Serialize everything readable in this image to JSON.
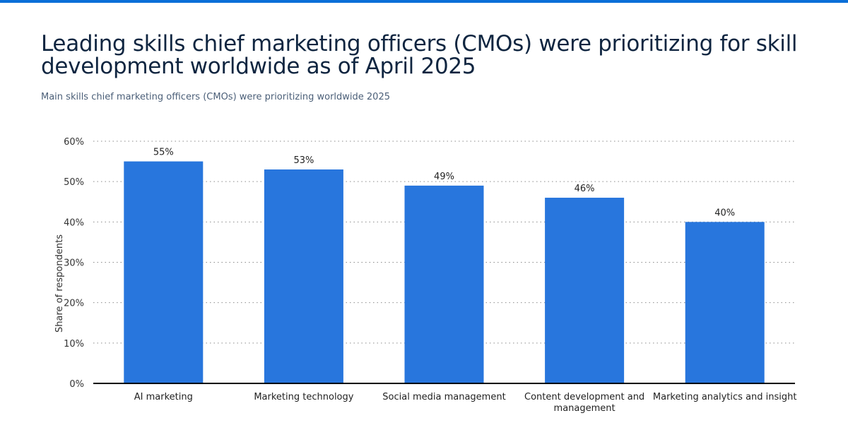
{
  "colors": {
    "accent": "#0b6fd8",
    "bar": "#2876dd",
    "title": "#0f2540"
  },
  "chart_data": {
    "type": "bar",
    "title": "Leading skills chief marketing officers (CMOs) were prioritizing for skill development worldwide as of April 2025",
    "subtitle": "Main skills chief marketing officers (CMOs) were prioritizing worldwide 2025",
    "xlabel": "",
    "ylabel": "Share of respondents",
    "ylim": [
      0,
      60
    ],
    "yticks": [
      0,
      10,
      20,
      30,
      40,
      50,
      60
    ],
    "ytick_labels": [
      "0%",
      "10%",
      "20%",
      "30%",
      "40%",
      "50%",
      "60%"
    ],
    "grid": true,
    "categories": [
      [
        "AI marketing"
      ],
      [
        "Marketing technology"
      ],
      [
        "Social media management"
      ],
      [
        "Content development and",
        "management"
      ],
      [
        "Marketing analytics and insight"
      ]
    ],
    "values": [
      55,
      53,
      49,
      46,
      40
    ],
    "data_labels": [
      "55%",
      "53%",
      "49%",
      "46%",
      "40%"
    ]
  }
}
